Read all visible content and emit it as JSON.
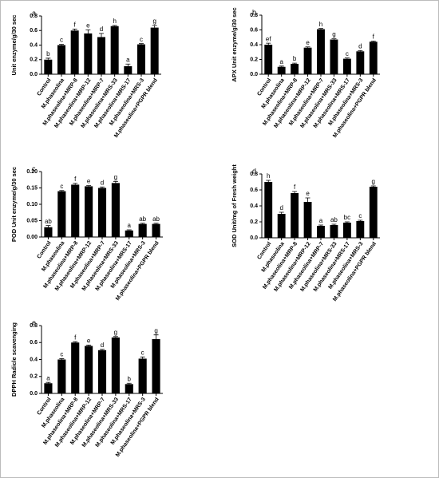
{
  "chart_data": [
    {
      "type": "bar",
      "panel": "a",
      "ylabel": "Unit enzyme/g/30 sec",
      "color": "#000000",
      "categories": [
        "Control",
        "M.phaseolina",
        "M.phaseolina+MRP-8",
        "M.phaseolina+MRP-12",
        "M.phaseolina+MRP-7",
        "M.phaseolina+MRS-33",
        "M.phaseolina+MRS-17",
        "M.phaseolina+MRS-3",
        "M.phaseolina+PGPR blend"
      ],
      "values": [
        0.2,
        0.4,
        0.6,
        0.56,
        0.51,
        0.66,
        0.11,
        0.41,
        0.64
      ],
      "errors": [
        0.02,
        0.01,
        0.02,
        0.05,
        0.05,
        0.01,
        0.03,
        0.01,
        0.03
      ],
      "letters": [
        "b",
        "c",
        "f",
        "e",
        "d",
        "h",
        "a",
        "c",
        "g"
      ],
      "ylim": [
        0,
        0.8
      ],
      "yticks": [
        {
          "value": 0,
          "label": "0.0"
        },
        0.2,
        0.4,
        0.6,
        0.8
      ]
    },
    {
      "type": "bar",
      "panel": "b",
      "ylabel": "APX Unit enzyme/g/30 sec",
      "color": "#000000",
      "categories": [
        "Control",
        "M.phaseolina",
        "M.phaseolina+MRP-8",
        "M.phaseolina+MRP-12",
        "M.phaseolina+MRP-7",
        "M.phaseolina+MRS-33",
        "M.phaseolina+MRS-17",
        "M.phaseolina+MRS-3",
        "M.phaseolina+PGPR blend"
      ],
      "values": [
        0.4,
        0.1,
        0.14,
        0.36,
        0.61,
        0.47,
        0.21,
        0.31,
        0.44
      ],
      "errors": [
        0.02,
        0.01,
        0.01,
        0.01,
        0.01,
        0.01,
        0.01,
        0.01,
        0.01
      ],
      "letters": [
        "ef",
        "a",
        "b",
        "e",
        "h",
        "g",
        "c",
        "d",
        "f"
      ],
      "ylim": [
        0,
        0.8
      ],
      "yticks": [
        {
          "value": 0,
          "label": "0.0"
        },
        0.2,
        0.4,
        0.6,
        0.8
      ]
    },
    {
      "type": "bar",
      "panel": "c",
      "ylabel": "POD Unit enzyme/g/30 sec",
      "color": "#000000",
      "categories": [
        "Control",
        "M.phaseolina",
        "M.phaseolina+MRP-8",
        "M.phaseolina+MRP-12",
        "M.phaseolina+MRP-7",
        "M.phaseolina+MRS-33",
        "M.phaseolina+MRS-17",
        "M.phaseolina+MRS-3",
        "M.phaseolina+PGPR blend"
      ],
      "values": [
        0.03,
        0.14,
        0.16,
        0.155,
        0.15,
        0.165,
        0.02,
        0.04,
        0.04
      ],
      "errors": [
        0.005,
        0.002,
        0.004,
        0.002,
        0.003,
        0.005,
        0.002,
        0.002,
        0.002
      ],
      "letters": [
        "ab",
        "c",
        "f",
        "e",
        "d",
        "g",
        "a",
        "ab",
        "ab"
      ],
      "ylim": [
        0,
        0.2
      ],
      "yticks": [
        {
          "value": 0,
          "label": "0.00"
        },
        0.05,
        {
          "value": 0.1,
          "label": "0.10"
        },
        0.15,
        {
          "value": 0.2,
          "label": "0.20"
        }
      ]
    },
    {
      "type": "bar",
      "panel": "d",
      "ylabel": "SOD Unit/mg of Fresh weight",
      "color": "#000000",
      "categories": [
        "Control",
        "M.phaseolina",
        "M.phaseolina+MRP-8",
        "M.phaseolina+MRP-12",
        "M.phaseolina+MRP-7",
        "M.phaseolina+MRS-33",
        "M.phaseolina+MRS-17",
        "M.phaseolina+MRS-3",
        "M.phaseolina+PGPR blend"
      ],
      "values": [
        0.7,
        0.3,
        0.56,
        0.45,
        0.15,
        0.16,
        0.19,
        0.21,
        0.64
      ],
      "errors": [
        0.02,
        0.02,
        0.02,
        0.05,
        0.01,
        0.01,
        0.01,
        0.01,
        0.01
      ],
      "letters": [
        "h",
        "d",
        "f",
        "e",
        "a",
        "ab",
        "bc",
        "c",
        "g"
      ],
      "ylim": [
        0,
        0.8
      ],
      "yticks": [
        {
          "value": 0,
          "label": "0.0"
        },
        0.2,
        0.4,
        0.6,
        0.8
      ]
    },
    {
      "type": "bar",
      "panel": "e",
      "ylabel": "DPPH Radicle scavenging",
      "color": "#000000",
      "categories": [
        "Control",
        "M.phaseolina",
        "M.phaseolina+MRP-8",
        "M.phaseolina+MRP-12",
        "M.phaseolina+MRP-7",
        "M.phaseolina+MRS-33",
        "M.phaseolina+MRS-17",
        "M.phaseolina+MRS-3",
        "M.phaseolina+PGPR blend"
      ],
      "values": [
        0.12,
        0.4,
        0.6,
        0.56,
        0.51,
        0.66,
        0.11,
        0.41,
        0.64
      ],
      "errors": [
        0.01,
        0.01,
        0.01,
        0.01,
        0.01,
        0.01,
        0.01,
        0.02,
        0.05
      ],
      "letters": [
        "a",
        "c",
        "f",
        "e",
        "d",
        "g",
        "b",
        "c",
        "g"
      ],
      "ylim": [
        0,
        0.8
      ],
      "yticks": [
        {
          "value": 0,
          "label": "0.0"
        },
        0.2,
        0.4,
        0.6,
        0.8
      ]
    }
  ]
}
